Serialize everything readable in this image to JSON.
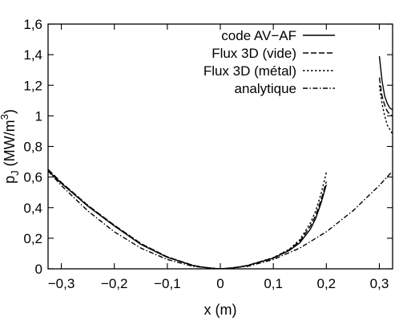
{
  "chart_data": {
    "type": "line",
    "title": "",
    "xlabel": "x (m)",
    "ylabel_base": "p",
    "ylabel_sub": "J",
    "ylabel_unit_prefix": " (MW/m",
    "ylabel_unit_sup": "3",
    "ylabel_unit_suffix": ")",
    "xlim": [
      -0.325,
      0.325
    ],
    "ylim": [
      0,
      1.6
    ],
    "xticks": [
      -0.3,
      -0.2,
      -0.1,
      0,
      0.1,
      0.2,
      0.3
    ],
    "xtick_labels": [
      "−0,3",
      "−0,2",
      "−0,1",
      "0",
      "0,1",
      "0,2",
      "0,3"
    ],
    "yticks": [
      0,
      0.2,
      0.4,
      0.6,
      0.8,
      1.0,
      1.2,
      1.4,
      1.6
    ],
    "ytick_labels": [
      "0",
      "0,2",
      "0,4",
      "0,6",
      "0,8",
      "1",
      "1,2",
      "1,4",
      "1,6"
    ],
    "grid": false,
    "legend_position": "top-right",
    "series": [
      {
        "name": "code AV−AF",
        "dash": "solid",
        "segments": [
          {
            "x": [
              -0.325,
              -0.3,
              -0.25,
              -0.2,
              -0.15,
              -0.1,
              -0.05,
              -0.02,
              0,
              0.02,
              0.05,
              0.1,
              0.13,
              0.15,
              0.17,
              0.18,
              0.19,
              0.2
            ],
            "y": [
              0.64,
              0.56,
              0.41,
              0.28,
              0.16,
              0.075,
              0.02,
              0.004,
              0.0,
              0.004,
              0.02,
              0.07,
              0.12,
              0.17,
              0.26,
              0.33,
              0.43,
              0.55
            ]
          },
          {
            "x": [
              0.3,
              0.305,
              0.31,
              0.315,
              0.32,
              0.325
            ],
            "y": [
              1.39,
              1.23,
              1.13,
              1.08,
              1.05,
              1.04
            ]
          }
        ]
      },
      {
        "name": "Flux 3D (vide)",
        "dash": "dashed",
        "segments": [
          {
            "x": [
              -0.325,
              -0.3,
              -0.25,
              -0.2,
              -0.15,
              -0.1,
              -0.05,
              -0.02,
              0,
              0.02,
              0.05,
              0.1,
              0.13,
              0.15,
              0.17,
              0.18,
              0.19,
              0.2
            ],
            "y": [
              0.65,
              0.565,
              0.415,
              0.285,
              0.165,
              0.078,
              0.021,
              0.004,
              0.0,
              0.004,
              0.021,
              0.072,
              0.125,
              0.18,
              0.28,
              0.35,
              0.45,
              0.57
            ]
          },
          {
            "x": [
              0.3,
              0.305,
              0.31,
              0.315,
              0.32,
              0.325
            ],
            "y": [
              1.25,
              1.13,
              1.07,
              1.03,
              1.01,
              1.0
            ]
          }
        ]
      },
      {
        "name": "Flux 3D (métal)",
        "dash": "dotted",
        "segments": [
          {
            "x": [
              -0.325,
              -0.3,
              -0.25,
              -0.2,
              -0.15,
              -0.1,
              -0.05,
              -0.02,
              0,
              0.02,
              0.05,
              0.1,
              0.13,
              0.15,
              0.17,
              0.18,
              0.19,
              0.2
            ],
            "y": [
              0.65,
              0.565,
              0.415,
              0.285,
              0.165,
              0.078,
              0.021,
              0.004,
              0.0,
              0.004,
              0.021,
              0.073,
              0.128,
              0.19,
              0.3,
              0.38,
              0.49,
              0.63
            ]
          },
          {
            "x": [
              0.3,
              0.305,
              0.31,
              0.315,
              0.32,
              0.325
            ],
            "y": [
              1.2,
              1.08,
              1.0,
              0.94,
              0.91,
              0.88
            ]
          }
        ]
      },
      {
        "name": "analytique",
        "dash": "dashdot",
        "segments": [
          {
            "x": [
              -0.325,
              -0.3,
              -0.25,
              -0.2,
              -0.15,
              -0.1,
              -0.05,
              0,
              0.05,
              0.1,
              0.15,
              0.2,
              0.25,
              0.3,
              0.325
            ],
            "y": [
              0.64,
              0.545,
              0.379,
              0.242,
              0.136,
              0.061,
              0.015,
              0.0,
              0.015,
              0.061,
              0.136,
              0.242,
              0.379,
              0.545,
              0.64
            ]
          }
        ]
      }
    ]
  }
}
